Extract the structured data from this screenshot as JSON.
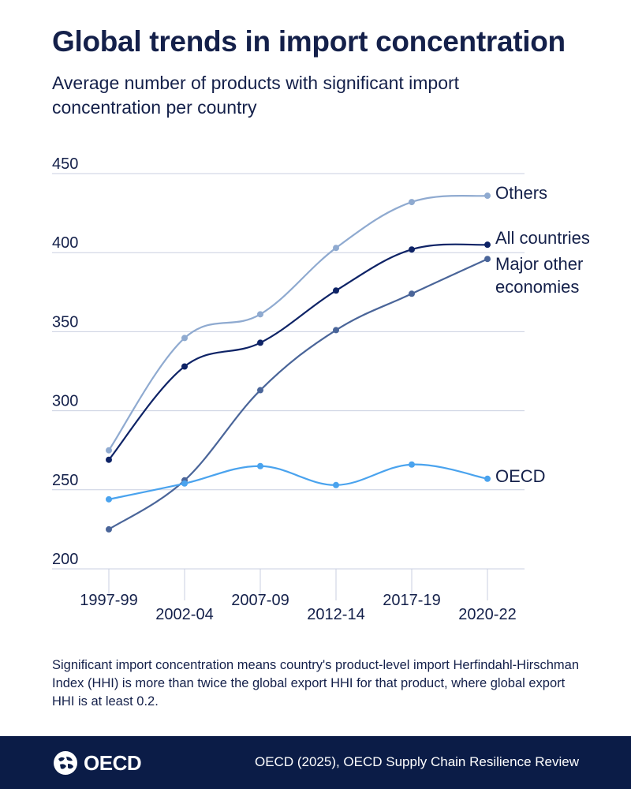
{
  "header": {
    "title": "Global trends in import concentration",
    "subtitle": "Average number of products with significant import concentration per country"
  },
  "chart_data": {
    "type": "line",
    "title": "Global trends in import concentration",
    "subtitle": "Average number of products with significant import concentration per country",
    "xlabel": "",
    "ylabel": "",
    "categories": [
      "1997-99",
      "2002-04",
      "2007-09",
      "2012-14",
      "2017-19",
      "2020-22"
    ],
    "ylim": [
      200,
      450
    ],
    "yticks": [
      200,
      250,
      300,
      350,
      400,
      450
    ],
    "grid": true,
    "series": [
      {
        "name": "Others",
        "color": "#8faad0",
        "values": [
          275,
          346,
          361,
          403,
          432,
          436
        ]
      },
      {
        "name": "All countries",
        "color": "#0e2366",
        "values": [
          269,
          328,
          343,
          376,
          402,
          405
        ]
      },
      {
        "name": "Major other economies",
        "label_lines": [
          "Major other",
          "economies"
        ],
        "color": "#4a6599",
        "values": [
          225,
          256,
          313,
          351,
          374,
          396
        ]
      },
      {
        "name": "OECD",
        "color": "#4aa3ee",
        "values": [
          244,
          254,
          265,
          253,
          266,
          257
        ]
      }
    ]
  },
  "note": "Significant import concentration means country's product-level import Herfindahl-Hirschman Index (HHI) is more than twice the global export HHI for that product, where global export HHI is at least 0.2.",
  "footer": {
    "logo_text": "OECD",
    "source": "OECD (2025), OECD Supply Chain Resilience Review"
  },
  "colors": {
    "footer_bg": "#0b1c47",
    "grid": "#c9cfe0",
    "text": "#14204a"
  },
  "icons": {
    "logo": "oecd-globe-icon"
  }
}
